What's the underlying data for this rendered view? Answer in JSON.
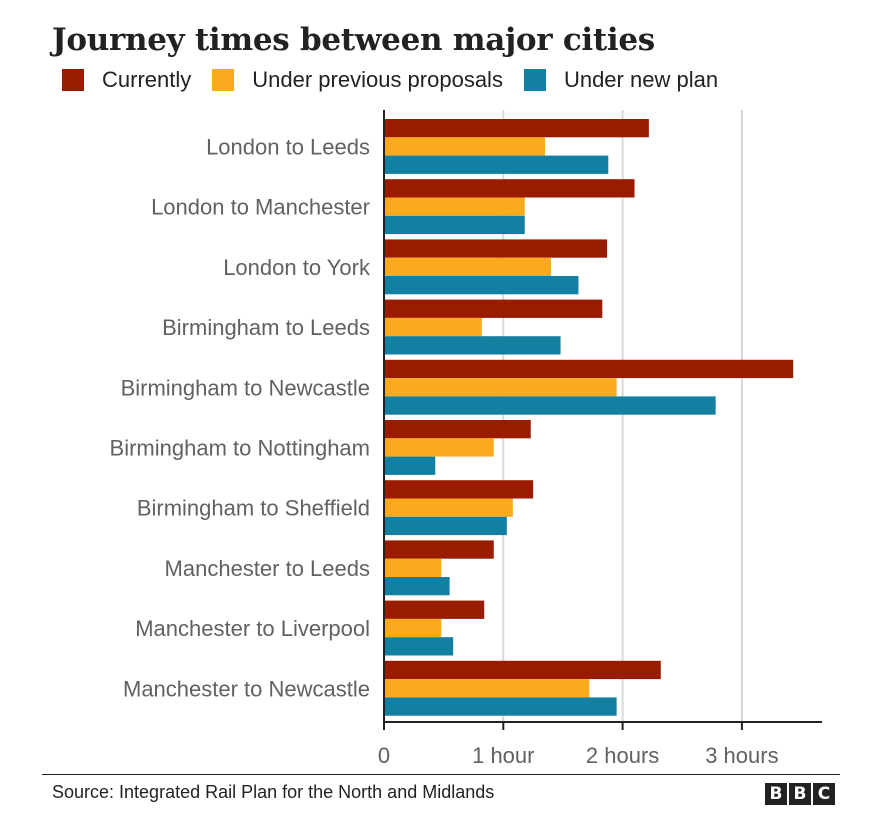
{
  "chart_data": {
    "type": "bar",
    "orientation": "horizontal",
    "title": "Journey times between major cities",
    "categories": [
      "London to Leeds",
      "London to Manchester",
      "London to York",
      "Birmingham to Leeds",
      "Birmingham to Newcastle",
      "Birmingham to Nottingham",
      "Birmingham to Sheffield",
      "Manchester to Leeds",
      "Manchester to Liverpool",
      "Manchester to Newcastle"
    ],
    "series": [
      {
        "name": "Currently",
        "color": "#991b00",
        "values": [
          2.22,
          2.1,
          1.87,
          1.83,
          3.43,
          1.23,
          1.25,
          0.92,
          0.84,
          2.32
        ]
      },
      {
        "name": "Under previous proposals",
        "color": "#fcaa1d",
        "values": [
          1.35,
          1.18,
          1.4,
          0.82,
          1.95,
          0.92,
          1.08,
          0.48,
          0.48,
          1.72
        ]
      },
      {
        "name": "Under new plan",
        "color": "#1380a1",
        "values": [
          1.88,
          1.18,
          1.63,
          1.48,
          2.78,
          0.43,
          1.03,
          0.55,
          0.58,
          1.95
        ]
      }
    ],
    "xtick_labels": [
      "0",
      "1 hour",
      "2 hours",
      "3 hours"
    ],
    "xticks": [
      0,
      1,
      2,
      3
    ],
    "xlim": [
      0,
      3.65
    ],
    "grid": "vertical",
    "legend": "top"
  },
  "footer": {
    "source": "Source: Integrated Rail Plan for the North and Midlands",
    "logo": [
      "B",
      "B",
      "C"
    ]
  }
}
